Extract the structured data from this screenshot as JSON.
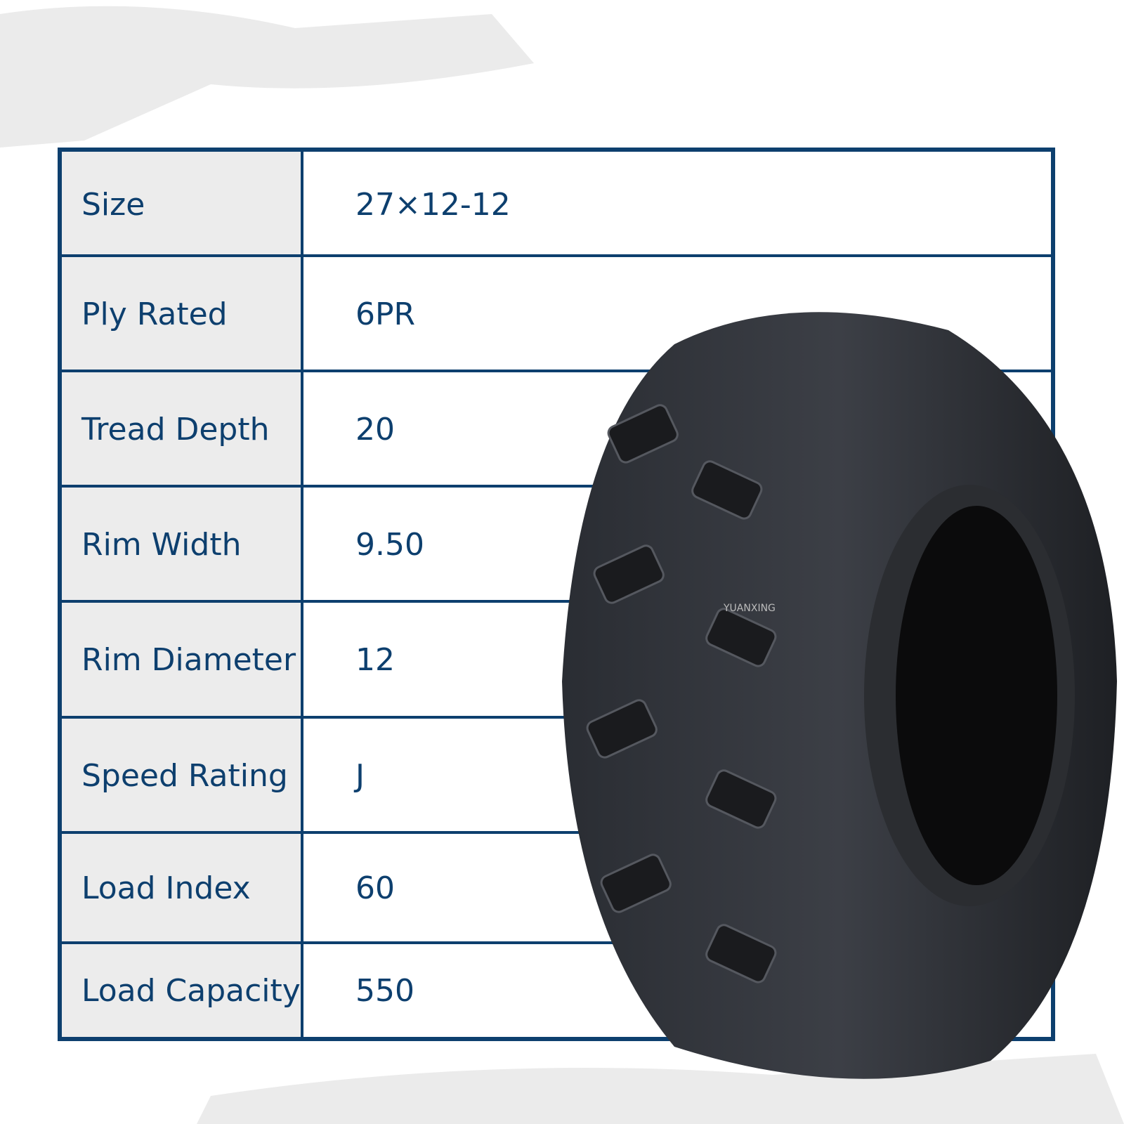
{
  "colors": {
    "border": "#0d3f6e",
    "label_bg": "#ececec",
    "text": "#0d3f6e"
  },
  "specs": [
    {
      "label": "Size",
      "value": "27×12-12"
    },
    {
      "label": "Ply Rated",
      "value": "6PR"
    },
    {
      "label": "Tread Depth",
      "value": "20"
    },
    {
      "label": "Rim Width",
      "value": "9.50"
    },
    {
      "label": "Rim Diameter",
      "value": "12"
    },
    {
      "label": "Speed Rating",
      "value": "J"
    },
    {
      "label": "Load Index",
      "value": "60"
    },
    {
      "label": "Load Capacity",
      "value": "550"
    }
  ],
  "tire_brand": "YUANXING"
}
